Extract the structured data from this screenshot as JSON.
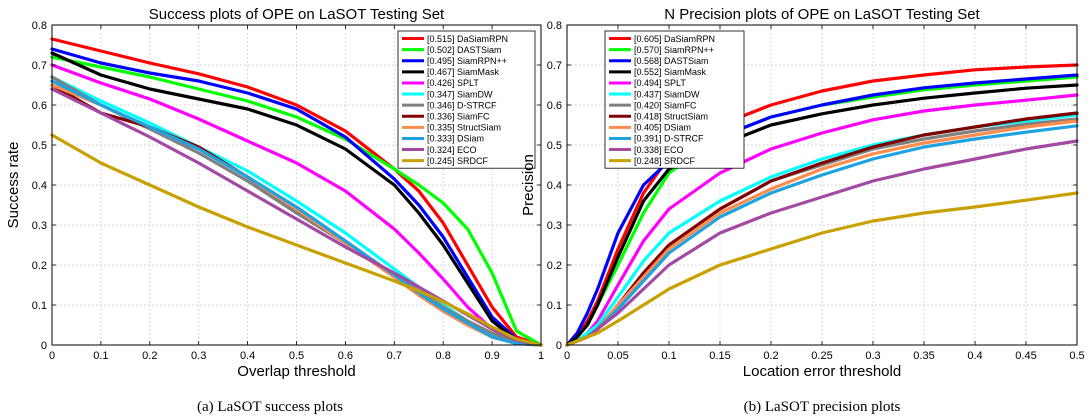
{
  "chart_data": [
    {
      "type": "line",
      "title": "Success plots of OPE on LaSOT Testing Set",
      "xlabel": "Overlap threshold",
      "ylabel": "Success rate",
      "caption": "(a)  LaSOT success plots",
      "xlim": [
        0,
        1
      ],
      "ylim": [
        0,
        0.8
      ],
      "xticks": [
        0,
        0.1,
        0.2,
        0.3,
        0.4,
        0.5,
        0.6,
        0.7,
        0.8,
        0.9,
        1
      ],
      "yticks": [
        0,
        0.1,
        0.2,
        0.3,
        0.4,
        0.5,
        0.6,
        0.7,
        0.8
      ],
      "grid": "dotted",
      "legend_position": "top-right",
      "x": [
        0,
        0.1,
        0.2,
        0.3,
        0.4,
        0.5,
        0.6,
        0.7,
        0.75,
        0.8,
        0.85,
        0.9,
        0.95,
        1
      ],
      "series": [
        {
          "name": "[0.515] DaSiamRPN",
          "color": "#ff0000",
          "values": [
            0.765,
            0.735,
            0.705,
            0.678,
            0.645,
            0.6,
            0.535,
            0.44,
            0.385,
            0.305,
            0.2,
            0.095,
            0.02,
            0
          ]
        },
        {
          "name": "[0.502] DASTSiam",
          "color": "#00ff00",
          "values": [
            0.72,
            0.695,
            0.67,
            0.64,
            0.61,
            0.57,
            0.515,
            0.44,
            0.4,
            0.355,
            0.29,
            0.18,
            0.035,
            0
          ]
        },
        {
          "name": "[0.495] SiamRPN++",
          "color": "#0000ff",
          "values": [
            0.74,
            0.705,
            0.68,
            0.66,
            0.63,
            0.59,
            0.52,
            0.415,
            0.35,
            0.27,
            0.17,
            0.07,
            0.015,
            0
          ]
        },
        {
          "name": "[0.467] SiamMask",
          "color": "#000000",
          "values": [
            0.73,
            0.675,
            0.64,
            0.615,
            0.59,
            0.55,
            0.49,
            0.4,
            0.33,
            0.25,
            0.155,
            0.06,
            0.012,
            0
          ]
        },
        {
          "name": "[0.426] SPLT",
          "color": "#ff00ff",
          "values": [
            0.7,
            0.655,
            0.615,
            0.565,
            0.51,
            0.455,
            0.385,
            0.29,
            0.23,
            0.165,
            0.095,
            0.04,
            0.008,
            0
          ]
        },
        {
          "name": "[0.347] SiamDW",
          "color": "#00ffff",
          "values": [
            0.67,
            0.61,
            0.555,
            0.495,
            0.435,
            0.36,
            0.28,
            0.19,
            0.145,
            0.1,
            0.06,
            0.025,
            0.005,
            0
          ]
        },
        {
          "name": "[0.346] D-STRCF",
          "color": "#808080",
          "values": [
            0.67,
            0.6,
            0.54,
            0.48,
            0.41,
            0.33,
            0.255,
            0.175,
            0.135,
            0.095,
            0.06,
            0.03,
            0.008,
            0
          ]
        },
        {
          "name": "[0.336] SiamFC",
          "color": "#800000",
          "values": [
            0.65,
            0.58,
            0.545,
            0.495,
            0.42,
            0.34,
            0.255,
            0.17,
            0.125,
            0.085,
            0.05,
            0.02,
            0.004,
            0
          ]
        },
        {
          "name": "[0.335] StructSiam",
          "color": "#ff8c4c",
          "values": [
            0.65,
            0.6,
            0.545,
            0.49,
            0.42,
            0.34,
            0.255,
            0.17,
            0.125,
            0.085,
            0.05,
            0.02,
            0.004,
            0
          ]
        },
        {
          "name": "[0.333] DSiam",
          "color": "#1fa2e0",
          "values": [
            0.66,
            0.6,
            0.545,
            0.49,
            0.42,
            0.345,
            0.26,
            0.175,
            0.13,
            0.09,
            0.055,
            0.02,
            0.004,
            0
          ]
        },
        {
          "name": "[0.324] ECO",
          "color": "#a349a4",
          "values": [
            0.64,
            0.58,
            0.52,
            0.455,
            0.385,
            0.315,
            0.245,
            0.18,
            0.145,
            0.11,
            0.075,
            0.04,
            0.012,
            0
          ]
        },
        {
          "name": "[0.245] SRDCF",
          "color": "#c8a000",
          "values": [
            0.525,
            0.455,
            0.4,
            0.345,
            0.295,
            0.25,
            0.205,
            0.16,
            0.135,
            0.108,
            0.078,
            0.045,
            0.015,
            0
          ]
        }
      ]
    },
    {
      "type": "line",
      "title": "N Precision plots of OPE on LaSOT Testing Set",
      "xlabel": "Location error threshold",
      "ylabel": "Precision",
      "caption": "(b)  LaSOT precision plots",
      "xlim": [
        0,
        0.5
      ],
      "ylim": [
        0,
        0.8
      ],
      "xticks": [
        0,
        0.05,
        0.1,
        0.15,
        0.2,
        0.25,
        0.3,
        0.35,
        0.4,
        0.45,
        0.5
      ],
      "yticks": [
        0,
        0.1,
        0.2,
        0.3,
        0.4,
        0.5,
        0.6,
        0.7,
        0.8
      ],
      "grid": "dotted",
      "legend_position": "top-left",
      "x": [
        0,
        0.01,
        0.02,
        0.03,
        0.05,
        0.075,
        0.1,
        0.15,
        0.2,
        0.25,
        0.3,
        0.35,
        0.4,
        0.45,
        0.5
      ],
      "series": [
        {
          "name": "[0.605] DaSiamRPN",
          "color": "#ff0000",
          "values": [
            0,
            0.02,
            0.06,
            0.11,
            0.24,
            0.38,
            0.47,
            0.55,
            0.6,
            0.635,
            0.66,
            0.675,
            0.688,
            0.695,
            0.7
          ]
        },
        {
          "name": "[0.570] SiamRPN++",
          "color": "#00ff00",
          "values": [
            0,
            0.02,
            0.05,
            0.1,
            0.2,
            0.33,
            0.43,
            0.52,
            0.57,
            0.6,
            0.62,
            0.638,
            0.65,
            0.66,
            0.67
          ]
        },
        {
          "name": "[0.568] DASTSiam",
          "color": "#0000ff",
          "values": [
            0,
            0.03,
            0.08,
            0.14,
            0.28,
            0.4,
            0.46,
            0.52,
            0.57,
            0.6,
            0.625,
            0.643,
            0.655,
            0.665,
            0.675
          ]
        },
        {
          "name": "[0.552] SiamMask",
          "color": "#000000",
          "values": [
            0,
            0.02,
            0.05,
            0.1,
            0.22,
            0.36,
            0.44,
            0.5,
            0.55,
            0.578,
            0.6,
            0.617,
            0.63,
            0.642,
            0.65
          ]
        },
        {
          "name": "[0.494] SPLT",
          "color": "#ff00ff",
          "values": [
            0,
            0.01,
            0.03,
            0.06,
            0.15,
            0.26,
            0.34,
            0.43,
            0.49,
            0.53,
            0.563,
            0.585,
            0.6,
            0.612,
            0.625
          ]
        },
        {
          "name": "[0.437] SiamDW",
          "color": "#00ffff",
          "values": [
            0,
            0.01,
            0.03,
            0.05,
            0.12,
            0.21,
            0.28,
            0.36,
            0.42,
            0.465,
            0.5,
            0.525,
            0.545,
            0.56,
            0.575
          ]
        },
        {
          "name": "[0.420] SiamFC",
          "color": "#808080",
          "values": [
            0,
            0.01,
            0.02,
            0.04,
            0.1,
            0.18,
            0.25,
            0.34,
            0.41,
            0.45,
            0.49,
            0.515,
            0.535,
            0.552,
            0.565
          ]
        },
        {
          "name": "[0.418] StructSiam",
          "color": "#800000",
          "values": [
            0,
            0.01,
            0.02,
            0.04,
            0.1,
            0.18,
            0.25,
            0.34,
            0.41,
            0.455,
            0.495,
            0.525,
            0.545,
            0.565,
            0.58
          ]
        },
        {
          "name": "[0.405] DSiam",
          "color": "#ff8c4c",
          "values": [
            0,
            0.01,
            0.02,
            0.04,
            0.1,
            0.17,
            0.24,
            0.33,
            0.39,
            0.44,
            0.478,
            0.505,
            0.525,
            0.545,
            0.56
          ]
        },
        {
          "name": "[0.391] D-STRCF",
          "color": "#1fa2e0",
          "values": [
            0,
            0.01,
            0.02,
            0.04,
            0.09,
            0.16,
            0.23,
            0.32,
            0.38,
            0.425,
            0.465,
            0.495,
            0.515,
            0.532,
            0.548
          ]
        },
        {
          "name": "[0.338] ECO",
          "color": "#a349a4",
          "values": [
            0,
            0.01,
            0.02,
            0.04,
            0.08,
            0.14,
            0.2,
            0.28,
            0.33,
            0.37,
            0.41,
            0.44,
            0.465,
            0.49,
            0.51
          ]
        },
        {
          "name": "[0.248] SRDCF",
          "color": "#c8a000",
          "values": [
            0,
            0.01,
            0.02,
            0.03,
            0.06,
            0.1,
            0.14,
            0.2,
            0.24,
            0.28,
            0.31,
            0.33,
            0.345,
            0.362,
            0.38
          ]
        }
      ]
    }
  ]
}
